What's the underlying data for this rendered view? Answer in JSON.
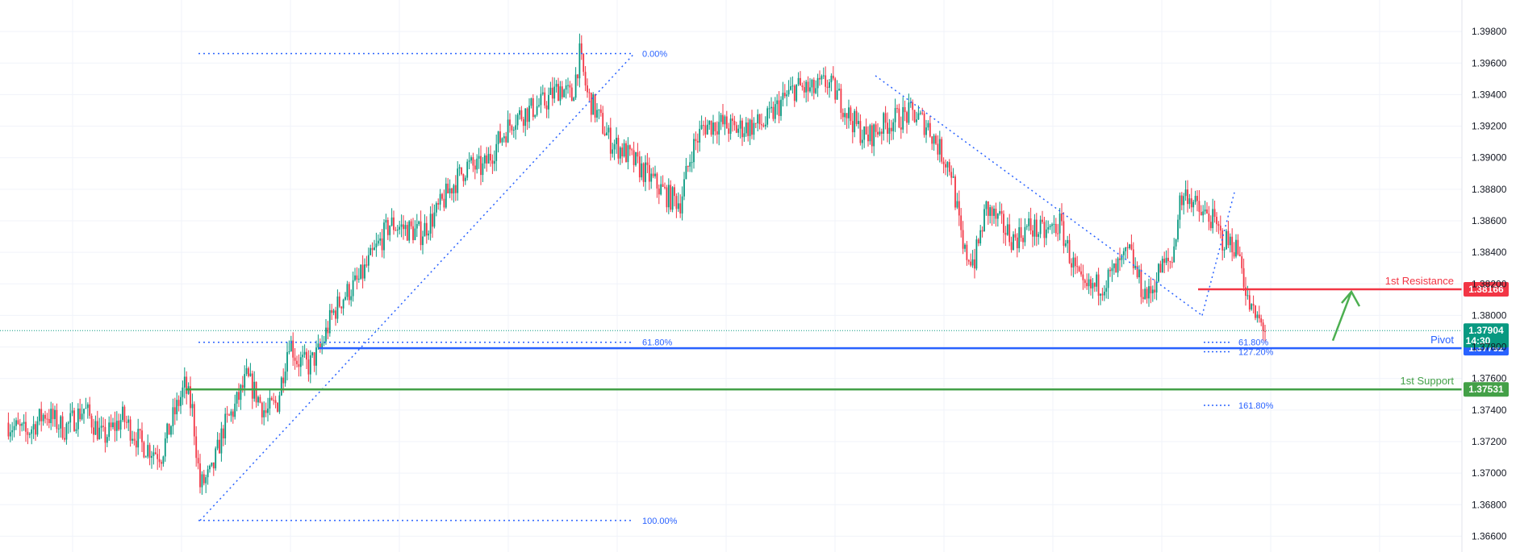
{
  "chart_data": {
    "type": "candlestick",
    "y_axis": {
      "min": 1.365,
      "max": 1.4,
      "ticks": [
        "1.36600",
        "1.36800",
        "1.37000",
        "1.37200",
        "1.37400",
        "1.37600",
        "1.37800",
        "1.38000",
        "1.38200",
        "1.38400",
        "1.38600",
        "1.38800",
        "1.39000",
        "1.39200",
        "1.39400",
        "1.39600",
        "1.39800"
      ],
      "position": "right"
    },
    "grid": true,
    "colors": {
      "up": "#089981",
      "down": "#f23645",
      "fib": "#2962ff",
      "resistance": "#f23645",
      "pivot": "#2962ff",
      "support": "#43a047",
      "arrow": "#4caf50"
    },
    "price_path": [
      [
        0,
        1.3732
      ],
      [
        10,
        1.3725
      ],
      [
        20,
        1.3738
      ],
      [
        30,
        1.3728
      ],
      [
        40,
        1.3741
      ],
      [
        50,
        1.3722
      ],
      [
        60,
        1.3735
      ],
      [
        70,
        1.3718
      ],
      [
        80,
        1.3712
      ],
      [
        86,
        1.3735
      ],
      [
        92,
        1.3755
      ],
      [
        96,
        1.374
      ],
      [
        100,
        1.3692
      ],
      [
        106,
        1.37
      ],
      [
        112,
        1.3728
      ],
      [
        118,
        1.3742
      ],
      [
        124,
        1.376
      ],
      [
        128,
        1.3752
      ],
      [
        134,
        1.3738
      ],
      [
        140,
        1.3745
      ],
      [
        146,
        1.3785
      ],
      [
        150,
        1.3772
      ],
      [
        156,
        1.3768
      ],
      [
        162,
        1.3778
      ],
      [
        168,
        1.38
      ],
      [
        174,
        1.3812
      ],
      [
        182,
        1.3822
      ],
      [
        190,
        1.384
      ],
      [
        198,
        1.3858
      ],
      [
        206,
        1.3855
      ],
      [
        214,
        1.3852
      ],
      [
        222,
        1.3865
      ],
      [
        230,
        1.3882
      ],
      [
        238,
        1.3895
      ],
      [
        246,
        1.3893
      ],
      [
        254,
        1.391
      ],
      [
        262,
        1.3925
      ],
      [
        270,
        1.393
      ],
      [
        278,
        1.3935
      ],
      [
        286,
        1.3945
      ],
      [
        292,
        1.3938
      ],
      [
        296,
        1.3965
      ],
      [
        300,
        1.394
      ],
      [
        306,
        1.3925
      ],
      [
        312,
        1.391
      ],
      [
        318,
        1.3905
      ],
      [
        326,
        1.3895
      ],
      [
        334,
        1.3885
      ],
      [
        342,
        1.3875
      ],
      [
        348,
        1.3872
      ],
      [
        354,
        1.3905
      ],
      [
        360,
        1.392
      ],
      [
        368,
        1.3922
      ],
      [
        376,
        1.3918
      ],
      [
        384,
        1.392
      ],
      [
        392,
        1.3922
      ],
      [
        400,
        1.3935
      ],
      [
        408,
        1.3945
      ],
      [
        416,
        1.3942
      ],
      [
        424,
        1.3948
      ],
      [
        430,
        1.3938
      ],
      [
        436,
        1.3925
      ],
      [
        444,
        1.3912
      ],
      [
        452,
        1.392
      ],
      [
        460,
        1.3925
      ],
      [
        468,
        1.3928
      ],
      [
        476,
        1.392
      ],
      [
        482,
        1.3905
      ],
      [
        488,
        1.3892
      ],
      [
        494,
        1.384
      ],
      [
        500,
        1.3835
      ],
      [
        506,
        1.3868
      ],
      [
        512,
        1.386
      ],
      [
        520,
        1.3848
      ],
      [
        528,
        1.3856
      ],
      [
        536,
        1.3852
      ],
      [
        544,
        1.3858
      ],
      [
        550,
        1.3835
      ],
      [
        556,
        1.3815
      ],
      [
        562,
        1.3818
      ],
      [
        568,
        1.3822
      ],
      [
        574,
        1.383
      ],
      [
        580,
        1.384
      ],
      [
        586,
        1.3818
      ],
      [
        590,
        1.3812
      ],
      [
        596,
        1.383
      ],
      [
        602,
        1.3835
      ],
      [
        606,
        1.3872
      ],
      [
        610,
        1.3878
      ],
      [
        616,
        1.3865
      ],
      [
        622,
        1.3862
      ],
      [
        628,
        1.3848
      ],
      [
        634,
        1.3845
      ],
      [
        638,
        1.3835
      ],
      [
        640,
        1.3812
      ],
      [
        644,
        1.38
      ],
      [
        650,
        1.3792
      ]
    ],
    "fib_retracement_left": {
      "high": 1.3966,
      "low": 1.367,
      "levels": [
        {
          "label": "0.00%",
          "value": 1.3966
        },
        {
          "label": "61.80%",
          "value": 1.3783
        },
        {
          "label": "100.00%",
          "value": 1.367
        }
      ]
    },
    "fib_extension_right": {
      "levels": [
        {
          "label": "61.80%",
          "value": 1.3783
        },
        {
          "label": "127.20%",
          "value": 1.3779
        },
        {
          "label": "161.80%",
          "value": 1.3743
        }
      ]
    },
    "levels": [
      {
        "name": "1st Resistance",
        "value": 1.38166,
        "badge": "1.38166"
      },
      {
        "name": "Pivot",
        "value": 1.37792,
        "badge": "1.37792"
      },
      {
        "name": "1st Support",
        "value": 1.37531,
        "badge": "1.37531"
      }
    ],
    "last_price": {
      "value": "1.37904",
      "countdown": "14:30"
    }
  }
}
